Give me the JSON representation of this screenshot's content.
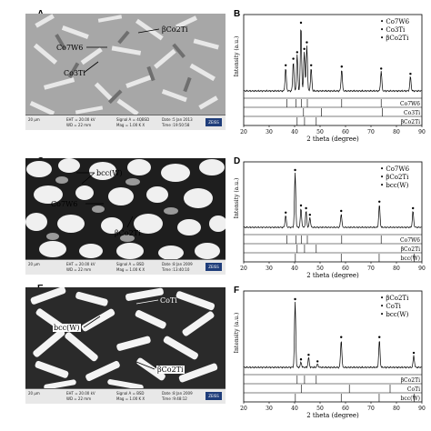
{
  "panels": {
    "A": {
      "letter": "A",
      "labels": [
        "Co7W6",
        "βCo2Ti",
        "Co3Ti"
      ],
      "bar": {
        "scale": "20 µm",
        "eht": "EHT = 20.00 kV",
        "wd": "WD = 22 mm",
        "signal": "Signal A = 4QBSD",
        "mag": "Mag = 1.00 K X",
        "date": "Date :5 Jan 2013",
        "time": "Time :19:50:58"
      }
    },
    "C": {
      "letter": "C",
      "labels": [
        "bcc(W)",
        "Co7W6",
        "βCo2Ti"
      ],
      "bar": {
        "scale": "20 µm",
        "eht": "EHT = 20.00 kV",
        "wd": "WD = 22 mm",
        "signal": "Signal A = BSD",
        "mag": "Mag = 1.00 K X",
        "date": "Date :8 Jan 2009",
        "time": "Time :13:40:10"
      }
    },
    "E": {
      "letter": "E",
      "labels": [
        "CoTi",
        "bcc(W)",
        "βCo2Ti"
      ],
      "bar": {
        "scale": "20 µm",
        "eht": "EHT = 20.00 kV",
        "wd": "WD = 22 mm",
        "signal": "Signal A = BSD",
        "mag": "Mag = 1.00 K X",
        "date": "Date :8 Jan 2009",
        "time": "Time :9:48:12"
      }
    }
  },
  "chart_data": [
    {
      "panel": "B",
      "type": "line",
      "ylabel": "Intensity (a.u.)",
      "xlabel": "2 theta (degree)",
      "xlim": [
        20,
        90
      ],
      "xticks": [
        20,
        30,
        40,
        50,
        60,
        70,
        80,
        90
      ],
      "legend": [
        {
          "marker": "•",
          "name": "Co7W6"
        },
        {
          "marker": "•",
          "name": "Co3Ti"
        },
        {
          "marker": "•",
          "name": "βCo2Ti"
        }
      ],
      "peaks": [
        {
          "x": 36.5,
          "h": 0.35
        },
        {
          "x": 39.5,
          "h": 0.45
        },
        {
          "x": 41,
          "h": 0.55
        },
        {
          "x": 42.5,
          "h": 1.0
        },
        {
          "x": 43.8,
          "h": 0.6
        },
        {
          "x": 44.8,
          "h": 0.7
        },
        {
          "x": 46.5,
          "h": 0.35
        },
        {
          "x": 58.5,
          "h": 0.33
        },
        {
          "x": 74,
          "h": 0.3
        },
        {
          "x": 85.5,
          "h": 0.22
        }
      ],
      "refs": [
        {
          "name": "Co7W6",
          "lines": [
            37,
            40.5,
            42.6,
            45,
            58.5,
            74
          ]
        },
        {
          "name": "Co3Ti",
          "lines": [
            43.5,
            50.5,
            74.5
          ]
        },
        {
          "name": "βCo2Ti",
          "lines": [
            41,
            43.9,
            48.5
          ]
        }
      ]
    },
    {
      "panel": "D",
      "type": "line",
      "ylabel": "Intensity (a.u.)",
      "xlabel": "2 theta (degree)",
      "xlim": [
        20,
        90
      ],
      "xticks": [
        20,
        30,
        40,
        50,
        60,
        70,
        80,
        90
      ],
      "legend": [
        {
          "marker": "•",
          "name": "Co7W6"
        },
        {
          "marker": "•",
          "name": "βCo2Ti"
        },
        {
          "marker": "•",
          "name": "bcc(W)"
        }
      ],
      "peaks": [
        {
          "x": 36.5,
          "h": 0.22
        },
        {
          "x": 40.2,
          "h": 1.0
        },
        {
          "x": 42.5,
          "h": 0.35
        },
        {
          "x": 44.5,
          "h": 0.3
        },
        {
          "x": 46,
          "h": 0.18
        },
        {
          "x": 58.3,
          "h": 0.25
        },
        {
          "x": 73.3,
          "h": 0.42
        },
        {
          "x": 86.5,
          "h": 0.3
        }
      ],
      "refs": [
        {
          "name": "Co7W6",
          "lines": [
            37,
            40.5,
            42.6,
            45,
            58.5,
            74
          ]
        },
        {
          "name": "βCo2Ti",
          "lines": [
            41,
            43.9,
            48.5
          ]
        },
        {
          "name": "bcc(W)",
          "lines": [
            40.3,
            58.3,
            73.2,
            87
          ]
        }
      ]
    },
    {
      "panel": "F",
      "type": "line",
      "ylabel": "Intensity (a.u.)",
      "xlabel": "2 theta (degree)",
      "xlim": [
        20,
        90
      ],
      "xticks": [
        20,
        30,
        40,
        50,
        60,
        70,
        80,
        90
      ],
      "legend": [
        {
          "marker": "•",
          "name": "βCo2Ti"
        },
        {
          "marker": "•",
          "name": "CoTi"
        },
        {
          "marker": "•",
          "name": "bcc(W)"
        }
      ],
      "peaks": [
        {
          "x": 40.2,
          "h": 1.0
        },
        {
          "x": 42.5,
          "h": 0.08
        },
        {
          "x": 45.5,
          "h": 0.15
        },
        {
          "x": 49,
          "h": 0.05
        },
        {
          "x": 58.3,
          "h": 0.42
        },
        {
          "x": 73.3,
          "h": 0.42
        },
        {
          "x": 86.8,
          "h": 0.18
        }
      ],
      "refs": [
        {
          "name": "βCo2Ti",
          "lines": [
            41,
            43.9,
            48.5
          ]
        },
        {
          "name": "CoTi",
          "lines": [
            42.6,
            61.5,
            77.5
          ]
        },
        {
          "name": "bcc(W)",
          "lines": [
            40.3,
            58.3,
            73.2,
            87
          ]
        }
      ]
    }
  ]
}
